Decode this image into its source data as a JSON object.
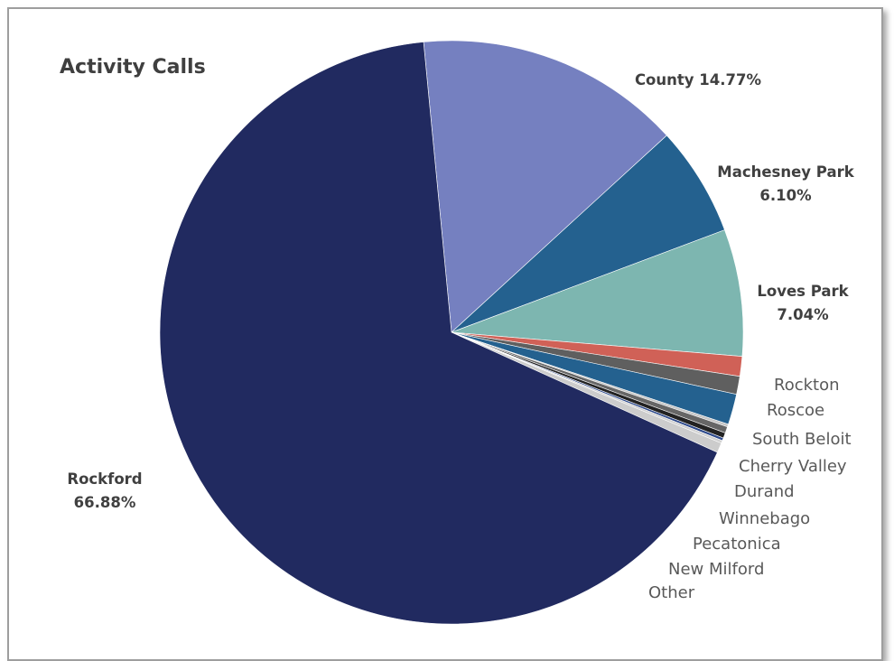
{
  "chart_data": {
    "type": "pie",
    "title": "Activity Calls",
    "slices": [
      {
        "name": "County",
        "value": 14.77,
        "pct_label": "14.77%",
        "color": "#7580c0"
      },
      {
        "name": "Machesney Park",
        "value": 6.1,
        "pct_label": "6.10%",
        "color": "#24618f"
      },
      {
        "name": "Loves Park",
        "value": 7.04,
        "pct_label": "7.04%",
        "color": "#7db6b0"
      },
      {
        "name": "Rockton",
        "value": 1.1,
        "color": "#d06157"
      },
      {
        "name": "Roscoe",
        "value": 1.0,
        "color": "#5f5f5f"
      },
      {
        "name": "South Beloit",
        "value": 1.7,
        "color": "#24618f"
      },
      {
        "name": "Cherry Valley",
        "value": 0.15,
        "color": "#c4c4c4"
      },
      {
        "name": "Durand",
        "value": 0.35,
        "color": "#666666"
      },
      {
        "name": "Winnebago",
        "value": 0.3,
        "color": "#222222"
      },
      {
        "name": "Pecatonica",
        "value": 0.15,
        "color": "#2e4a8c"
      },
      {
        "name": "New Milford",
        "value": 0.15,
        "color": "#d0d0d0"
      },
      {
        "name": "Other",
        "value": 0.55,
        "color": "#cccccc"
      },
      {
        "name": "Rockford",
        "value": 66.88,
        "pct_label": "66.88%",
        "color": "#212a60"
      }
    ]
  }
}
